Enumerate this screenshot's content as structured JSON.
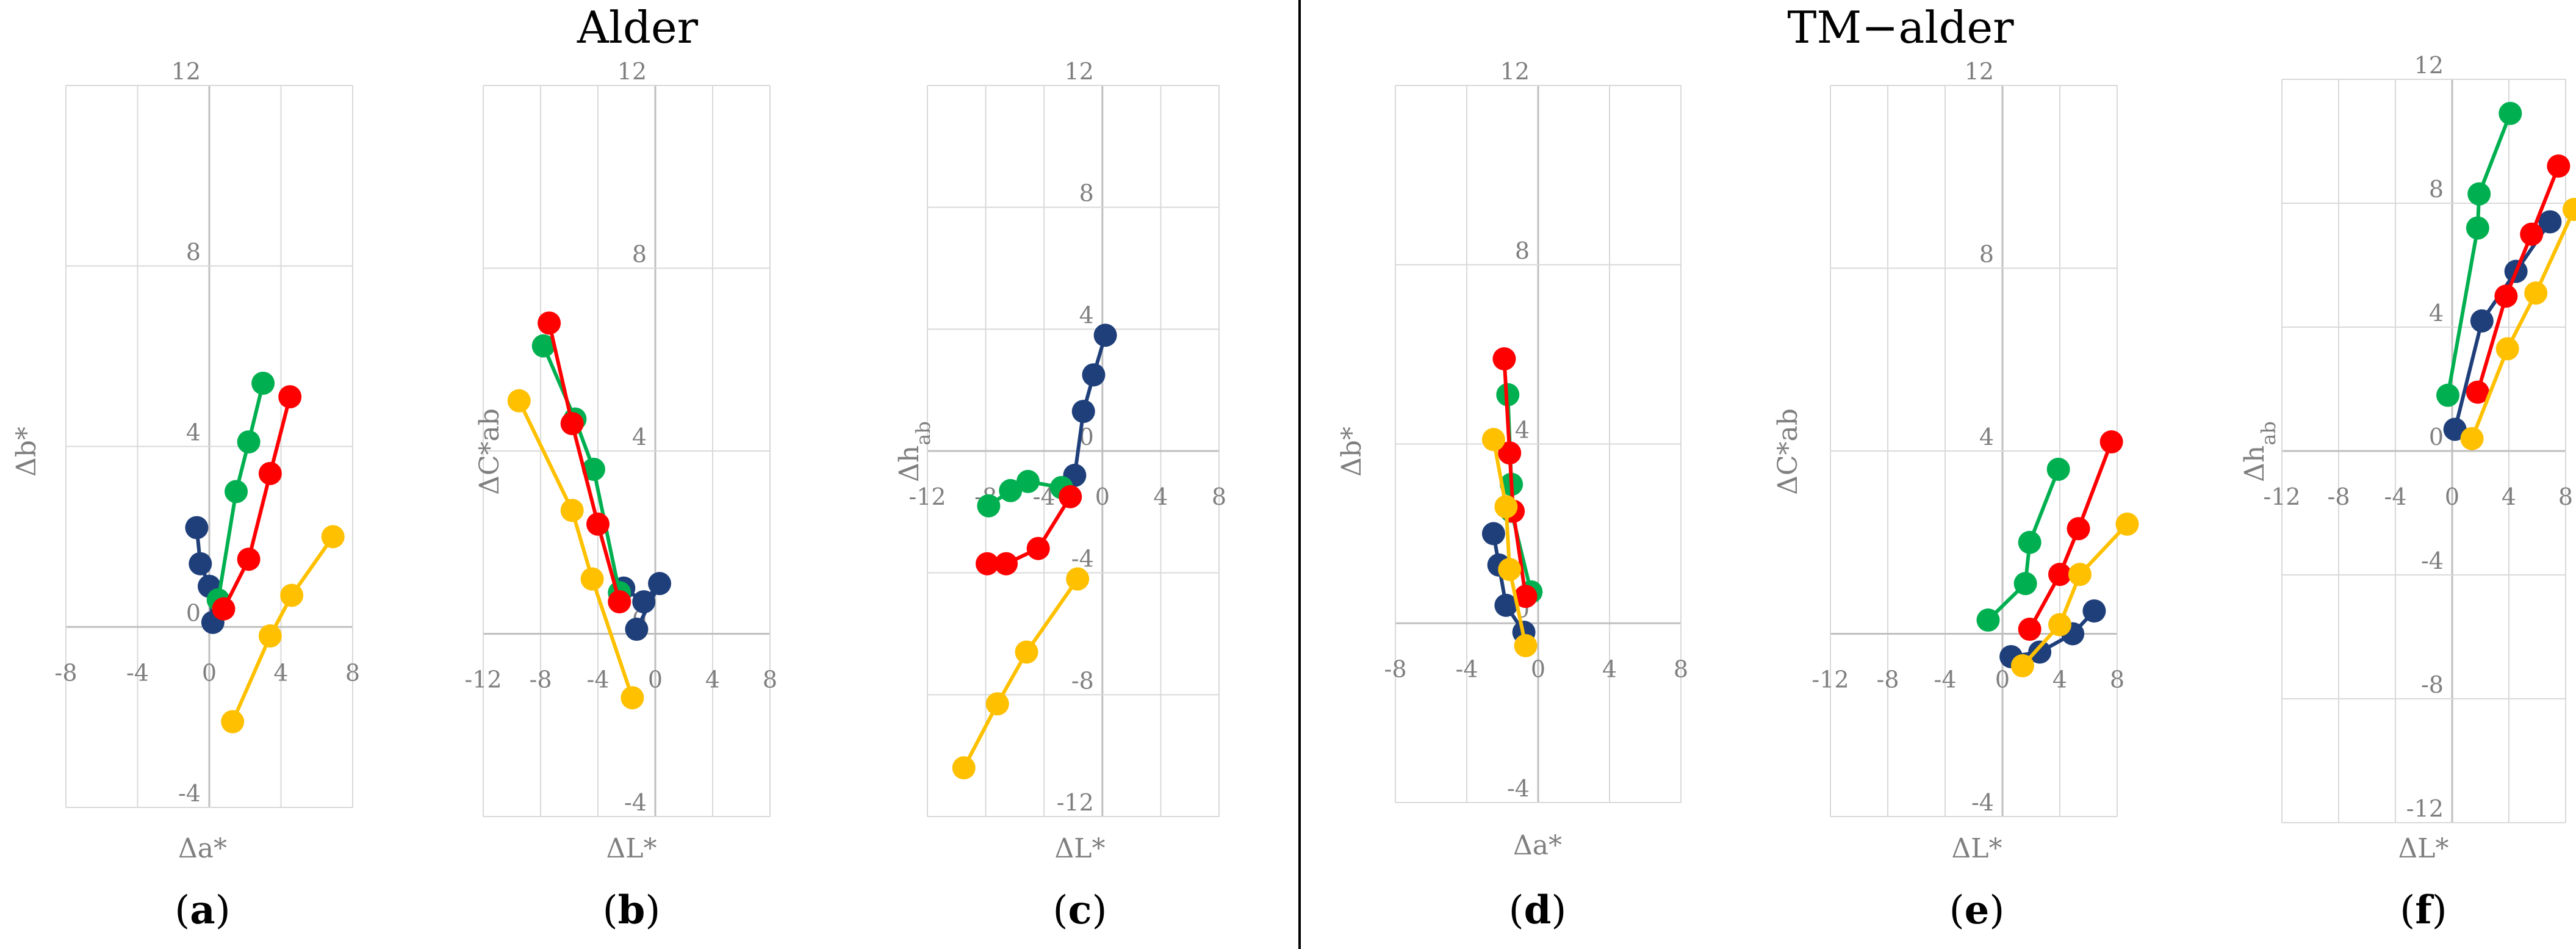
{
  "figure": {
    "groups": [
      {
        "title": "Alder",
        "panels": [
          "a",
          "b",
          "c"
        ]
      },
      {
        "title": "TM−alder",
        "panels": [
          "d",
          "e",
          "f"
        ]
      }
    ],
    "divider": true
  },
  "colors": {
    "series_blue": "#1f3f7a",
    "series_red": "#ff0000",
    "series_green": "#00b050",
    "series_yellow": "#ffc000",
    "grid": "#d9d9d9",
    "axis": "#bfbfbf",
    "text": "#7f7f7f"
  },
  "chart_data": [
    {
      "id": "a",
      "panel_label": "a",
      "type": "scatter",
      "xlabel": "Δa*",
      "ylabel": "Δb*",
      "xlim": [
        -8,
        8
      ],
      "ylim": [
        -4,
        12
      ],
      "xticks": [
        "-8",
        "-4",
        "0",
        "4",
        "8"
      ],
      "yticks": [
        "-4",
        "0",
        "4",
        "8",
        "12"
      ],
      "series": [
        {
          "name": "blue",
          "color": "#1f3f7a",
          "points": [
            [
              -0.7,
              2.2
            ],
            [
              -0.5,
              1.4
            ],
            [
              0,
              0.9
            ],
            [
              0.2,
              0.1
            ]
          ]
        },
        {
          "name": "green",
          "color": "#00b050",
          "points": [
            [
              0.5,
              0.6
            ],
            [
              1.5,
              3.0
            ],
            [
              2.2,
              4.1
            ],
            [
              3.0,
              5.4
            ]
          ]
        },
        {
          "name": "red",
          "color": "#ff0000",
          "points": [
            [
              0.8,
              0.4
            ],
            [
              2.2,
              1.5
            ],
            [
              3.4,
              3.4
            ],
            [
              4.5,
              5.1
            ]
          ]
        },
        {
          "name": "yellow",
          "color": "#ffc000",
          "points": [
            [
              1.3,
              -2.1
            ],
            [
              3.4,
              -0.2
            ],
            [
              4.6,
              0.7
            ],
            [
              6.9,
              2.0
            ]
          ]
        }
      ]
    },
    {
      "id": "b",
      "panel_label": "b",
      "type": "scatter",
      "xlabel": "ΔL*",
      "ylabel": "ΔC*ab",
      "xlim": [
        -12,
        8
      ],
      "ylim": [
        -4,
        12
      ],
      "xticks": [
        "-12",
        "-8",
        "-4",
        "0",
        "4",
        "8"
      ],
      "yticks": [
        "-4",
        "0",
        "4",
        "8",
        "12"
      ],
      "series": [
        {
          "name": "blue",
          "color": "#1f3f7a",
          "points": [
            [
              -2.2,
              1.0
            ],
            [
              -0.8,
              0.7
            ],
            [
              0.3,
              1.1
            ],
            [
              -1.3,
              0.1
            ]
          ]
        },
        {
          "name": "green",
          "color": "#00b050",
          "points": [
            [
              -7.8,
              6.3
            ],
            [
              -5.6,
              4.7
            ],
            [
              -4.3,
              3.6
            ],
            [
              -2.5,
              0.9
            ]
          ]
        },
        {
          "name": "red",
          "color": "#ff0000",
          "points": [
            [
              -7.4,
              6.8
            ],
            [
              -5.8,
              4.6
            ],
            [
              -4.0,
              2.4
            ],
            [
              -2.5,
              0.7
            ]
          ]
        },
        {
          "name": "yellow",
          "color": "#ffc000",
          "points": [
            [
              -9.5,
              5.1
            ],
            [
              -5.8,
              2.7
            ],
            [
              -4.4,
              1.2
            ],
            [
              -1.6,
              -1.4
            ]
          ]
        }
      ]
    },
    {
      "id": "c",
      "panel_label": "c",
      "type": "scatter",
      "xlabel": "ΔL*",
      "ylabel": "Δh_ab",
      "xlim": [
        -12,
        8
      ],
      "ylim": [
        -12,
        12
      ],
      "xticks": [
        "-12",
        "-8",
        "-4",
        "0",
        "4",
        "8"
      ],
      "yticks": [
        "-12",
        "-8",
        "-4",
        "0",
        "4",
        "8",
        "12"
      ],
      "series": [
        {
          "name": "blue",
          "color": "#1f3f7a",
          "points": [
            [
              -1.9,
              -0.8
            ],
            [
              -1.3,
              1.3
            ],
            [
              -0.6,
              2.5
            ],
            [
              0.2,
              3.8
            ]
          ]
        },
        {
          "name": "green",
          "color": "#00b050",
          "points": [
            [
              -7.8,
              -1.8
            ],
            [
              -6.3,
              -1.3
            ],
            [
              -5.1,
              -1.0
            ],
            [
              -2.8,
              -1.2
            ]
          ]
        },
        {
          "name": "red",
          "color": "#ff0000",
          "points": [
            [
              -7.9,
              -3.7
            ],
            [
              -6.6,
              -3.7
            ],
            [
              -4.4,
              -3.2
            ],
            [
              -2.2,
              -1.5
            ]
          ]
        },
        {
          "name": "yellow",
          "color": "#ffc000",
          "points": [
            [
              -9.5,
              -10.4
            ],
            [
              -7.2,
              -8.3
            ],
            [
              -5.2,
              -6.6
            ],
            [
              -1.7,
              -4.2
            ]
          ]
        }
      ]
    },
    {
      "id": "d",
      "panel_label": "d",
      "type": "scatter",
      "xlabel": "Δa*",
      "ylabel": "Δb*",
      "xlim": [
        -8,
        8
      ],
      "ylim": [
        -4,
        12
      ],
      "xticks": [
        "-8",
        "-4",
        "0",
        "4",
        "8"
      ],
      "yticks": [
        "-4",
        "0",
        "4",
        "8",
        "12"
      ],
      "series": [
        {
          "name": "blue",
          "color": "#1f3f7a",
          "points": [
            [
              -2.5,
              2.0
            ],
            [
              -2.2,
              1.3
            ],
            [
              -1.8,
              0.4
            ],
            [
              -0.8,
              -0.2
            ]
          ]
        },
        {
          "name": "green",
          "color": "#00b050",
          "points": [
            [
              -1.7,
              5.1
            ],
            [
              -1.5,
              3.1
            ],
            [
              -1.5,
              2.5
            ],
            [
              -0.4,
              0.7
            ]
          ]
        },
        {
          "name": "red",
          "color": "#ff0000",
          "points": [
            [
              -1.9,
              5.9
            ],
            [
              -1.6,
              3.8
            ],
            [
              -1.4,
              2.5
            ],
            [
              -0.7,
              0.6
            ]
          ]
        },
        {
          "name": "yellow",
          "color": "#ffc000",
          "points": [
            [
              -2.5,
              4.1
            ],
            [
              -1.8,
              2.6
            ],
            [
              -1.6,
              1.2
            ],
            [
              -0.7,
              -0.5
            ]
          ]
        }
      ]
    },
    {
      "id": "e",
      "panel_label": "e",
      "type": "scatter",
      "xlabel": "ΔL*",
      "ylabel": "ΔC*ab",
      "xlim": [
        -12,
        8
      ],
      "ylim": [
        -4,
        12
      ],
      "xticks": [
        "-12",
        "-8",
        "-4",
        "0",
        "4",
        "8"
      ],
      "yticks": [
        "-4",
        "0",
        "4",
        "8",
        "12"
      ],
      "series": [
        {
          "name": "blue",
          "color": "#1f3f7a",
          "points": [
            [
              0.6,
              -0.5
            ],
            [
              2.6,
              -0.4
            ],
            [
              4.9,
              0.0
            ],
            [
              6.4,
              0.5
            ]
          ]
        },
        {
          "name": "green",
          "color": "#00b050",
          "points": [
            [
              -1.0,
              0.3
            ],
            [
              1.6,
              1.1
            ],
            [
              1.9,
              2.0
            ],
            [
              3.9,
              3.6
            ]
          ]
        },
        {
          "name": "red",
          "color": "#ff0000",
          "points": [
            [
              1.9,
              0.1
            ],
            [
              4.0,
              1.3
            ],
            [
              5.3,
              2.3
            ],
            [
              7.6,
              4.2
            ]
          ]
        },
        {
          "name": "yellow",
          "color": "#ffc000",
          "points": [
            [
              1.4,
              -0.7
            ],
            [
              4.0,
              0.2
            ],
            [
              5.4,
              1.3
            ],
            [
              8.7,
              2.4
            ]
          ]
        }
      ]
    },
    {
      "id": "f",
      "panel_label": "f",
      "type": "scatter",
      "xlabel": "ΔL*",
      "ylabel": "Δh_ab",
      "xlim": [
        -12,
        8
      ],
      "ylim": [
        -12,
        12
      ],
      "xticks": [
        "-12",
        "-8",
        "-4",
        "0",
        "4",
        "8"
      ],
      "yticks": [
        "-12",
        "-8",
        "-4",
        "0",
        "4",
        "8",
        "12"
      ],
      "series": [
        {
          "name": "blue",
          "color": "#1f3f7a",
          "points": [
            [
              0.2,
              0.7
            ],
            [
              2.1,
              4.2
            ],
            [
              4.5,
              5.8
            ],
            [
              6.9,
              7.4
            ]
          ]
        },
        {
          "name": "green",
          "color": "#00b050",
          "points": [
            [
              -0.3,
              1.8
            ],
            [
              1.8,
              7.2
            ],
            [
              1.9,
              8.3
            ],
            [
              4.1,
              10.9
            ]
          ]
        },
        {
          "name": "red",
          "color": "#ff0000",
          "points": [
            [
              1.8,
              1.9
            ],
            [
              3.8,
              5.0
            ],
            [
              5.6,
              7.0
            ],
            [
              7.5,
              9.2
            ]
          ]
        },
        {
          "name": "yellow",
          "color": "#ffc000",
          "points": [
            [
              1.4,
              0.4
            ],
            [
              3.9,
              3.3
            ],
            [
              5.9,
              5.1
            ],
            [
              8.6,
              7.8
            ]
          ]
        }
      ]
    }
  ]
}
